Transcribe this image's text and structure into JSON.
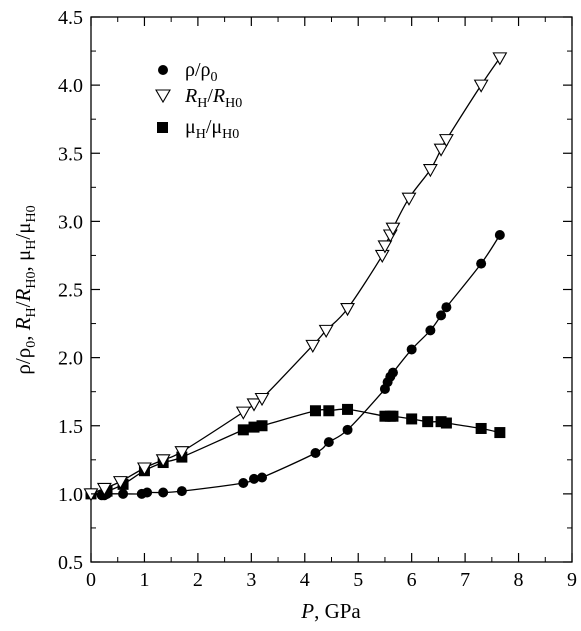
{
  "chart_data": {
    "type": "scatter",
    "xlim": [
      0,
      9
    ],
    "ylim": [
      0.5,
      4.5
    ],
    "x_ticks": [
      0,
      1,
      2,
      3,
      4,
      5,
      6,
      7,
      8,
      9
    ],
    "y_ticks": [
      0.5,
      1.0,
      1.5,
      2.0,
      2.5,
      3.0,
      3.5,
      4.0,
      4.5
    ],
    "x_tick_labels": [
      "0",
      "1",
      "2",
      "3",
      "4",
      "5",
      "6",
      "7",
      "8",
      "9"
    ],
    "y_tick_labels": [
      "0.5",
      "1.0",
      "1.5",
      "2.0",
      "2.5",
      "3.0",
      "3.5",
      "4.0",
      "4.5"
    ],
    "xlabel": "P, GPa",
    "ylabel": "ρ/ρ0, RH/RH0, μH/μH0",
    "grid": false,
    "legend_position": "top-left",
    "series": [
      {
        "name": "ρ/ρ0",
        "marker": "circle-filled",
        "color": "#000000",
        "x": [
          0,
          0.2,
          0.25,
          0.3,
          0.6,
          0.95,
          1.05,
          1.35,
          1.7,
          2.85,
          3.05,
          3.2,
          4.2,
          4.45,
          4.8,
          5.5,
          5.55,
          5.6,
          5.65,
          6.0,
          6.35,
          6.55,
          6.65,
          7.3,
          7.65
        ],
        "y": [
          1.0,
          0.99,
          0.99,
          1.0,
          1.0,
          1.0,
          1.01,
          1.01,
          1.02,
          1.08,
          1.11,
          1.12,
          1.3,
          1.38,
          1.47,
          1.77,
          1.82,
          1.86,
          1.89,
          2.06,
          2.2,
          2.31,
          2.37,
          2.69,
          2.9
        ]
      },
      {
        "name": "RH/RH0",
        "marker": "triangle-down-open",
        "color": "#000000",
        "x": [
          0,
          0.25,
          0.55,
          1.0,
          1.35,
          1.7,
          2.85,
          3.05,
          3.2,
          4.15,
          4.4,
          4.8,
          5.45,
          5.5,
          5.6,
          5.65,
          5.95,
          6.35,
          6.55,
          6.65,
          7.3,
          7.65
        ],
        "y": [
          1.0,
          1.04,
          1.09,
          1.19,
          1.25,
          1.31,
          1.6,
          1.66,
          1.7,
          2.09,
          2.2,
          2.36,
          2.75,
          2.82,
          2.9,
          2.95,
          3.17,
          3.38,
          3.53,
          3.6,
          4.0,
          4.2
        ]
      },
      {
        "name": "μH/μH0",
        "marker": "square-filled",
        "color": "#000000",
        "x": [
          0,
          0.3,
          0.6,
          1.0,
          1.35,
          1.7,
          2.85,
          3.05,
          3.2,
          4.2,
          4.45,
          4.8,
          5.5,
          5.6,
          5.65,
          6.0,
          6.3,
          6.55,
          6.65,
          7.3,
          7.65
        ],
        "y": [
          1.0,
          1.02,
          1.07,
          1.17,
          1.23,
          1.27,
          1.47,
          1.49,
          1.5,
          1.61,
          1.61,
          1.62,
          1.57,
          1.57,
          1.57,
          1.55,
          1.53,
          1.53,
          1.52,
          1.48,
          1.45
        ]
      }
    ],
    "legend": [
      {
        "base": "ρ/ρ",
        "sub": "0",
        "italic": false
      },
      {
        "base": "R",
        "sub": "H",
        "mid": "/",
        "base2": "R",
        "sub2": "H0",
        "italic": true
      },
      {
        "base": "μ",
        "sub": "H",
        "mid": "/μ",
        "sub2": "H0",
        "italic": false
      }
    ]
  }
}
